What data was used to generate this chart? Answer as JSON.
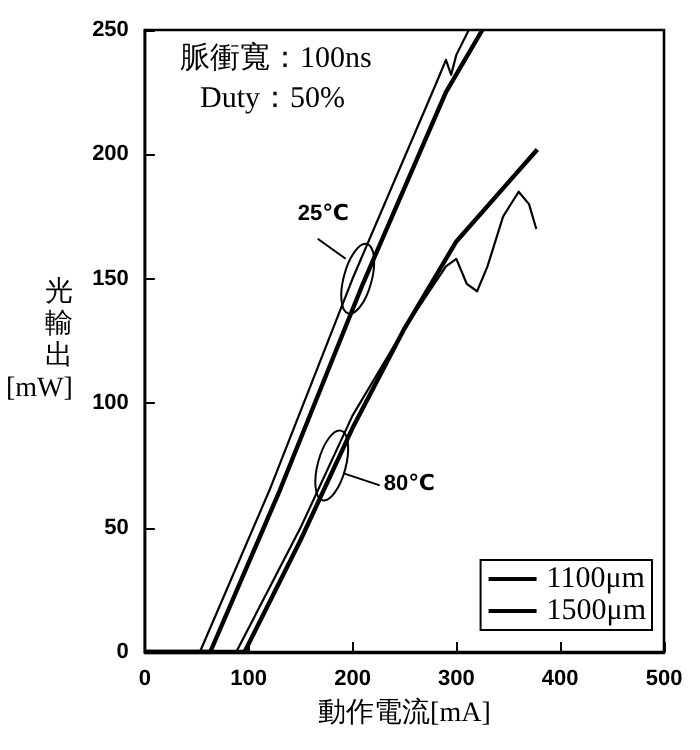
{
  "chart_data": {
    "type": "line",
    "xlabel": "動作電流[mA]",
    "ylabel": "光輸出[mW]",
    "xlim": [
      0,
      500
    ],
    "xticks": [
      0,
      100,
      200,
      300,
      400,
      500
    ],
    "ylim": [
      0,
      250
    ],
    "yticks": [
      0,
      50,
      100,
      150,
      200,
      250
    ],
    "grid": false,
    "legend": "bottom right",
    "marker": "none",
    "line_style": "solid",
    "annotations": [
      "脈衝寬：100ns",
      "Duty：50%",
      {
        "text": "25℃",
        "x": 205,
        "y": 150
      },
      {
        "text": "80℃",
        "x": 180,
        "y": 75
      }
    ],
    "series": [
      {
        "name": "1100μm",
        "color": "#000000",
        "x": [
          0,
          53,
          120,
          200,
          280,
          290,
          295,
          300,
          312
        ],
        "values": [
          0,
          0,
          65,
          150,
          228,
          238,
          232,
          240,
          250
        ]
      },
      {
        "name": "1500μm",
        "color": "#000000",
        "x": [
          0,
          63,
          130,
          210,
          290,
          325
        ],
        "values": [
          0,
          0,
          65,
          148,
          225,
          250
        ]
      },
      {
        "color": "#000000",
        "x": [
          0,
          88,
          150,
          200,
          250,
          290,
          300,
          310,
          320,
          330,
          345,
          360,
          370,
          377
        ],
        "values": [
          0,
          0,
          50,
          95,
          130,
          155,
          158,
          148,
          145,
          155,
          175,
          185,
          180,
          170
        ]
      },
      {
        "color": "#000000",
        "x": [
          0,
          96,
          150,
          200,
          250,
          300,
          378
        ],
        "values": [
          0,
          0,
          45,
          90,
          130,
          165,
          202
        ]
      }
    ]
  }
}
